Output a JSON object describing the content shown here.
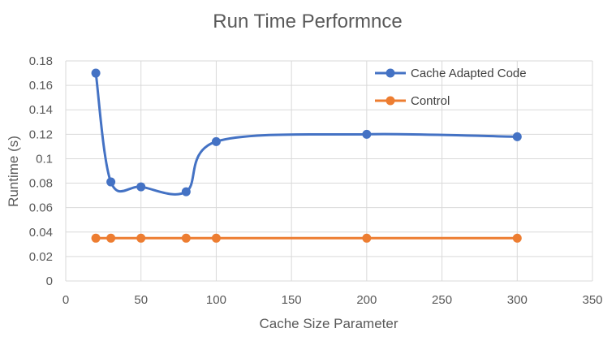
{
  "chart_data": {
    "type": "scatter",
    "title": "Run Time Performnce",
    "xlabel": "Cache Size Parameter",
    "ylabel": "Runtime (s)",
    "xlim": [
      0,
      350
    ],
    "ylim": [
      0,
      0.18
    ],
    "x_ticks": [
      0,
      50,
      100,
      150,
      200,
      250,
      300,
      350
    ],
    "y_ticks": [
      0,
      0.02,
      0.04,
      0.06,
      0.08,
      0.1,
      0.12,
      0.14,
      0.16,
      0.18
    ],
    "x_tick_labels": [
      "0",
      "50",
      "100",
      "150",
      "200",
      "250",
      "300",
      "350"
    ],
    "y_tick_labels": [
      "0",
      "0.02",
      "0.04",
      "0.06",
      "0.08",
      "0.1",
      "0.12",
      "0.14",
      "0.16",
      "0.18"
    ],
    "grid": true,
    "legend_position": "top-right",
    "series": [
      {
        "name": "Cache Adapted Code",
        "color": "#4472c4",
        "smooth": true,
        "x": [
          20,
          30,
          50,
          80,
          100,
          200,
          300
        ],
        "y": [
          0.17,
          0.081,
          0.077,
          0.073,
          0.114,
          0.12,
          0.118
        ]
      },
      {
        "name": "Control",
        "color": "#ed7d31",
        "smooth": true,
        "x": [
          20,
          30,
          50,
          80,
          100,
          200,
          300
        ],
        "y": [
          0.035,
          0.035,
          0.035,
          0.035,
          0.035,
          0.035,
          0.035
        ]
      }
    ]
  }
}
